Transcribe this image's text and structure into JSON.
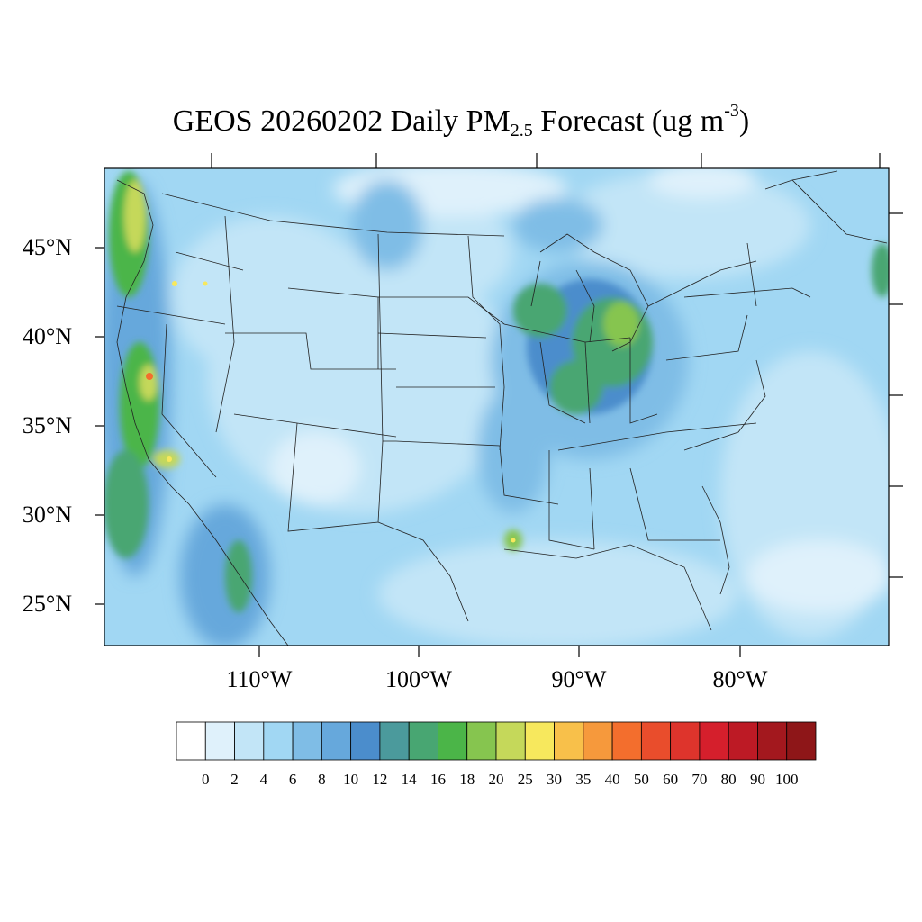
{
  "title": {
    "main": "GEOS 20260202 Daily PM",
    "subscript": "2.5",
    "rest": " Forecast (ug m",
    "superscript": "-3",
    "close": ")"
  },
  "latitude_labels": [
    "45°N",
    "40°N",
    "35°N",
    "30°N",
    "25°N"
  ],
  "longitude_labels": [
    "110°W",
    "100°W",
    "90°W",
    "80°W"
  ],
  "colorbar": {
    "labels": [
      "0",
      "2",
      "4",
      "6",
      "8",
      "10",
      "12",
      "14",
      "16",
      "18",
      "20",
      "25",
      "30",
      "35",
      "40",
      "50",
      "60",
      "70",
      "80",
      "90",
      "100"
    ],
    "colors": [
      "#ffffff",
      "#dff1fb",
      "#c2e5f7",
      "#a1d7f3",
      "#7fbde6",
      "#66a8dc",
      "#4b8dcc",
      "#4b9a9c",
      "#48a672",
      "#4bb548",
      "#86c54f",
      "#c5d85a",
      "#f7e85d",
      "#f8c04a",
      "#f6993c",
      "#f36e2d",
      "#e94d2c",
      "#de342c",
      "#d51f2c",
      "#bd1a25",
      "#a3181e",
      "#8e1618"
    ]
  },
  "map": {
    "background_value_color": "#a1d7f3",
    "hotspots": [
      "Pacific Northwest coast",
      "Central California",
      "Southern California",
      "Great Lakes / Ohio Valley",
      "Louisiana coast"
    ]
  }
}
